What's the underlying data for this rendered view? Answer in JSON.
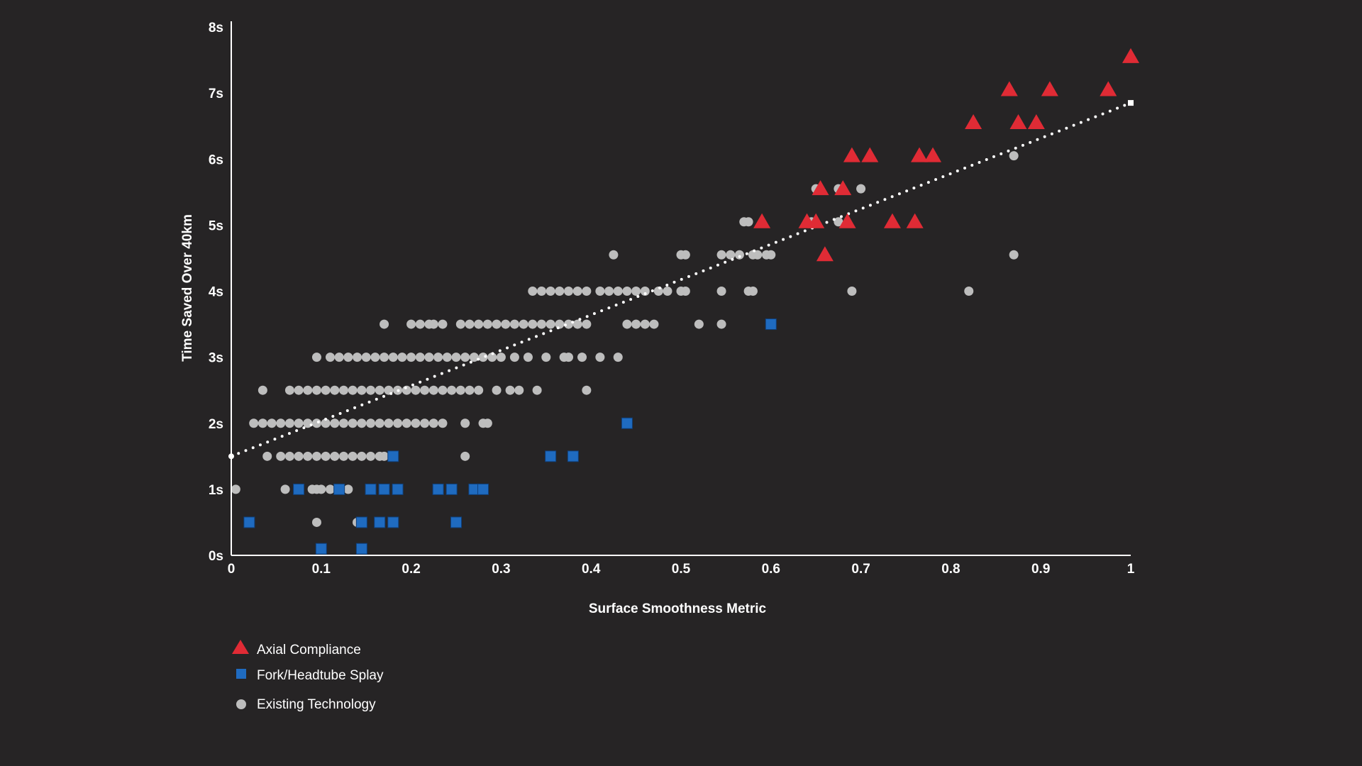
{
  "chart_data": {
    "type": "scatter",
    "xlabel": "Surface Smoothness Metric",
    "ylabel": "Time Saved Over 40km",
    "xlim": [
      0,
      1
    ],
    "ylim": [
      0,
      8
    ],
    "x_ticks": [
      "0",
      "0.1",
      "0.2",
      "0.3",
      "0.4",
      "0.5",
      "0.6",
      "0.7",
      "0.8",
      "0.9",
      "1"
    ],
    "y_ticks": [
      "0s",
      "1s",
      "2s",
      "3s",
      "4s",
      "5s",
      "6s",
      "7s",
      "8s"
    ],
    "grid": false,
    "legend_position": "bottom-left",
    "colors": {
      "axial": "#e02b35",
      "fork": "#1f6bc0",
      "existing": "#bdbdbd",
      "trend": "#ffffff",
      "background": "#262425",
      "axis": "#ffffff"
    },
    "trendline": {
      "x": [
        0,
        1
      ],
      "y": [
        1.5,
        6.85
      ]
    },
    "series": [
      {
        "name": "Axial Compliance",
        "marker": "triangle",
        "points": [
          [
            0.59,
            5.05
          ],
          [
            0.64,
            5.05
          ],
          [
            0.65,
            5.05
          ],
          [
            0.66,
            4.55
          ],
          [
            0.655,
            5.55
          ],
          [
            0.68,
            5.55
          ],
          [
            0.685,
            5.05
          ],
          [
            0.69,
            6.05
          ],
          [
            0.71,
            6.05
          ],
          [
            0.735,
            5.05
          ],
          [
            0.76,
            5.05
          ],
          [
            0.765,
            6.05
          ],
          [
            0.78,
            6.05
          ],
          [
            0.825,
            6.55
          ],
          [
            0.865,
            7.05
          ],
          [
            0.875,
            6.55
          ],
          [
            0.895,
            6.55
          ],
          [
            0.91,
            7.05
          ],
          [
            0.975,
            7.05
          ],
          [
            1.0,
            7.55
          ]
        ]
      },
      {
        "name": "Fork/Headtube Splay",
        "marker": "square",
        "points": [
          [
            0.02,
            0.5
          ],
          [
            0.1,
            0.1
          ],
          [
            0.145,
            0.1
          ],
          [
            0.075,
            1.0
          ],
          [
            0.12,
            1.0
          ],
          [
            0.155,
            1.0
          ],
          [
            0.17,
            1.0
          ],
          [
            0.185,
            1.0
          ],
          [
            0.23,
            1.0
          ],
          [
            0.245,
            1.0
          ],
          [
            0.27,
            1.0
          ],
          [
            0.28,
            1.0
          ],
          [
            0.145,
            0.5
          ],
          [
            0.165,
            0.5
          ],
          [
            0.18,
            0.5
          ],
          [
            0.25,
            0.5
          ],
          [
            0.18,
            1.5
          ],
          [
            0.355,
            1.5
          ],
          [
            0.38,
            1.5
          ],
          [
            0.44,
            2.0
          ],
          [
            0.6,
            3.5
          ]
        ]
      },
      {
        "name": "Existing Technology",
        "marker": "circle",
        "points": [
          [
            0.005,
            1.0
          ],
          [
            0.06,
            1.0
          ],
          [
            0.09,
            1.0
          ],
          [
            0.095,
            1.0
          ],
          [
            0.1,
            1.0
          ],
          [
            0.11,
            1.0
          ],
          [
            0.13,
            1.0
          ],
          [
            0.095,
            0.5
          ],
          [
            0.14,
            0.5
          ],
          [
            0.26,
            1.5
          ],
          [
            0.165,
            1.5
          ],
          [
            0.17,
            1.5
          ],
          [
            0.04,
            1.5
          ],
          [
            0.055,
            1.5
          ],
          [
            0.065,
            1.5
          ],
          [
            0.075,
            1.5
          ],
          [
            0.085,
            1.5
          ],
          [
            0.095,
            1.5
          ],
          [
            0.105,
            1.5
          ],
          [
            0.115,
            1.5
          ],
          [
            0.125,
            1.5
          ],
          [
            0.135,
            1.5
          ],
          [
            0.145,
            1.5
          ],
          [
            0.155,
            1.5
          ],
          [
            0.025,
            2.0
          ],
          [
            0.035,
            2.0
          ],
          [
            0.045,
            2.0
          ],
          [
            0.055,
            2.0
          ],
          [
            0.065,
            2.0
          ],
          [
            0.075,
            2.0
          ],
          [
            0.085,
            2.0
          ],
          [
            0.095,
            2.0
          ],
          [
            0.105,
            2.0
          ],
          [
            0.115,
            2.0
          ],
          [
            0.125,
            2.0
          ],
          [
            0.135,
            2.0
          ],
          [
            0.145,
            2.0
          ],
          [
            0.155,
            2.0
          ],
          [
            0.165,
            2.0
          ],
          [
            0.175,
            2.0
          ],
          [
            0.185,
            2.0
          ],
          [
            0.195,
            2.0
          ],
          [
            0.205,
            2.0
          ],
          [
            0.215,
            2.0
          ],
          [
            0.225,
            2.0
          ],
          [
            0.235,
            2.0
          ],
          [
            0.26,
            2.0
          ],
          [
            0.28,
            2.0
          ],
          [
            0.285,
            2.0
          ],
          [
            0.035,
            2.5
          ],
          [
            0.065,
            2.5
          ],
          [
            0.075,
            2.5
          ],
          [
            0.085,
            2.5
          ],
          [
            0.095,
            2.5
          ],
          [
            0.105,
            2.5
          ],
          [
            0.115,
            2.5
          ],
          [
            0.125,
            2.5
          ],
          [
            0.135,
            2.5
          ],
          [
            0.145,
            2.5
          ],
          [
            0.155,
            2.5
          ],
          [
            0.165,
            2.5
          ],
          [
            0.175,
            2.5
          ],
          [
            0.185,
            2.5
          ],
          [
            0.195,
            2.5
          ],
          [
            0.205,
            2.5
          ],
          [
            0.215,
            2.5
          ],
          [
            0.225,
            2.5
          ],
          [
            0.235,
            2.5
          ],
          [
            0.245,
            2.5
          ],
          [
            0.255,
            2.5
          ],
          [
            0.265,
            2.5
          ],
          [
            0.275,
            2.5
          ],
          [
            0.295,
            2.5
          ],
          [
            0.31,
            2.5
          ],
          [
            0.32,
            2.5
          ],
          [
            0.34,
            2.5
          ],
          [
            0.395,
            2.5
          ],
          [
            0.095,
            3.0
          ],
          [
            0.11,
            3.0
          ],
          [
            0.12,
            3.0
          ],
          [
            0.13,
            3.0
          ],
          [
            0.14,
            3.0
          ],
          [
            0.15,
            3.0
          ],
          [
            0.16,
            3.0
          ],
          [
            0.17,
            3.0
          ],
          [
            0.18,
            3.0
          ],
          [
            0.19,
            3.0
          ],
          [
            0.2,
            3.0
          ],
          [
            0.21,
            3.0
          ],
          [
            0.22,
            3.0
          ],
          [
            0.23,
            3.0
          ],
          [
            0.24,
            3.0
          ],
          [
            0.25,
            3.0
          ],
          [
            0.26,
            3.0
          ],
          [
            0.27,
            3.0
          ],
          [
            0.28,
            3.0
          ],
          [
            0.29,
            3.0
          ],
          [
            0.3,
            3.0
          ],
          [
            0.315,
            3.0
          ],
          [
            0.33,
            3.0
          ],
          [
            0.35,
            3.0
          ],
          [
            0.37,
            3.0
          ],
          [
            0.375,
            3.0
          ],
          [
            0.39,
            3.0
          ],
          [
            0.41,
            3.0
          ],
          [
            0.43,
            3.0
          ],
          [
            0.17,
            3.5
          ],
          [
            0.2,
            3.5
          ],
          [
            0.21,
            3.5
          ],
          [
            0.22,
            3.5
          ],
          [
            0.225,
            3.5
          ],
          [
            0.235,
            3.5
          ],
          [
            0.255,
            3.5
          ],
          [
            0.265,
            3.5
          ],
          [
            0.275,
            3.5
          ],
          [
            0.285,
            3.5
          ],
          [
            0.295,
            3.5
          ],
          [
            0.305,
            3.5
          ],
          [
            0.315,
            3.5
          ],
          [
            0.325,
            3.5
          ],
          [
            0.335,
            3.5
          ],
          [
            0.345,
            3.5
          ],
          [
            0.355,
            3.5
          ],
          [
            0.365,
            3.5
          ],
          [
            0.375,
            3.5
          ],
          [
            0.385,
            3.5
          ],
          [
            0.395,
            3.5
          ],
          [
            0.44,
            3.5
          ],
          [
            0.45,
            3.5
          ],
          [
            0.46,
            3.5
          ],
          [
            0.47,
            3.5
          ],
          [
            0.52,
            3.5
          ],
          [
            0.545,
            3.5
          ],
          [
            0.335,
            4.0
          ],
          [
            0.345,
            4.0
          ],
          [
            0.355,
            4.0
          ],
          [
            0.365,
            4.0
          ],
          [
            0.375,
            4.0
          ],
          [
            0.385,
            4.0
          ],
          [
            0.395,
            4.0
          ],
          [
            0.41,
            4.0
          ],
          [
            0.42,
            4.0
          ],
          [
            0.43,
            4.0
          ],
          [
            0.44,
            4.0
          ],
          [
            0.45,
            4.0
          ],
          [
            0.46,
            4.0
          ],
          [
            0.475,
            4.0
          ],
          [
            0.485,
            4.0
          ],
          [
            0.5,
            4.0
          ],
          [
            0.505,
            4.0
          ],
          [
            0.545,
            4.0
          ],
          [
            0.575,
            4.0
          ],
          [
            0.58,
            4.0
          ],
          [
            0.69,
            4.0
          ],
          [
            0.82,
            4.0
          ],
          [
            0.425,
            4.55
          ],
          [
            0.5,
            4.55
          ],
          [
            0.505,
            4.55
          ],
          [
            0.545,
            4.55
          ],
          [
            0.555,
            4.55
          ],
          [
            0.565,
            4.55
          ],
          [
            0.58,
            4.55
          ],
          [
            0.585,
            4.55
          ],
          [
            0.595,
            4.55
          ],
          [
            0.6,
            4.55
          ],
          [
            0.87,
            4.55
          ],
          [
            0.57,
            5.05
          ],
          [
            0.575,
            5.05
          ],
          [
            0.65,
            5.55
          ],
          [
            0.675,
            5.55
          ],
          [
            0.7,
            5.55
          ],
          [
            0.87,
            6.05
          ],
          [
            0.645,
            5.05
          ],
          [
            0.675,
            5.05
          ]
        ]
      }
    ]
  },
  "legend": [
    {
      "label": "Axial Compliance",
      "icon": "triangle-icon"
    },
    {
      "label": "Fork/Headtube Splay",
      "icon": "square-icon"
    },
    {
      "label": "Existing Technology",
      "icon": "circle-icon"
    }
  ]
}
